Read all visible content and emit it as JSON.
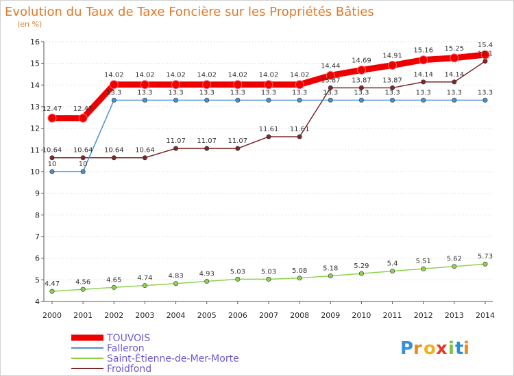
{
  "chart_data": {
    "type": "line",
    "title": "Evolution du Taux de Taxe Foncière sur les Propriétés Bâties",
    "ylabel": "(en %)",
    "xlabel": "",
    "ylim": [
      4,
      16
    ],
    "yticks": [
      4,
      5,
      6,
      7,
      8,
      9,
      10,
      11,
      12,
      13,
      14,
      15,
      16
    ],
    "x": [
      "2000",
      "2001",
      "2002",
      "2003",
      "2004",
      "2005",
      "2006",
      "2007",
      "2008",
      "2009",
      "2010",
      "2011",
      "2012",
      "2013",
      "2014"
    ],
    "series": [
      {
        "name": "TOUVOIS",
        "color": "#ee0000",
        "values": [
          12.47,
          12.47,
          14.02,
          14.02,
          14.02,
          14.02,
          14.02,
          14.02,
          14.02,
          14.44,
          14.69,
          14.91,
          15.16,
          15.25,
          15.4
        ],
        "labels": [
          "12.47",
          "12.47",
          "14.02",
          "14.02",
          "14.02",
          "14.02",
          "14.02",
          "14.02",
          "14.02",
          "14.44",
          "14.69",
          "14.91",
          "15.16",
          "15.25",
          "15.4"
        ]
      },
      {
        "name": "Falleron",
        "color": "#4a90c8",
        "values": [
          10,
          10,
          13.3,
          13.3,
          13.3,
          13.3,
          13.3,
          13.3,
          13.3,
          13.3,
          13.3,
          13.3,
          13.3,
          13.3,
          13.3
        ],
        "labels": [
          "10",
          "10",
          "13.3",
          "13.3",
          "13.3",
          "13.3",
          "13.3",
          "13.3",
          "13.3",
          "13.3",
          "13.3",
          "13.3",
          "13.3",
          "13.3",
          "13.3"
        ]
      },
      {
        "name": "Saint-Étienne-de-Mer-Morte",
        "color": "#8fd14f",
        "values": [
          4.47,
          4.56,
          4.65,
          4.74,
          4.83,
          4.93,
          5.03,
          5.03,
          5.08,
          5.18,
          5.29,
          5.4,
          5.51,
          5.62,
          5.73
        ],
        "labels": [
          "4.47",
          "4.56",
          "4.65",
          "4.74",
          "4.83",
          "4.93",
          "5.03",
          "5.03",
          "5.08",
          "5.18",
          "5.29",
          "5.4",
          "5.51",
          "5.62",
          "5.73"
        ]
      },
      {
        "name": "Froidfond",
        "color": "#7a2a2a",
        "values": [
          10.64,
          10.64,
          10.64,
          10.64,
          11.07,
          11.07,
          11.07,
          11.61,
          11.61,
          13.87,
          13.87,
          13.87,
          14.14,
          14.14,
          15.1
        ],
        "labels": [
          "10.64",
          "10.64",
          "10.64",
          "10.64",
          "11.07",
          "11.07",
          "11.07",
          "11.61",
          "11.61",
          "13.87",
          "13.87",
          "13.87",
          "14.14",
          "14.14",
          "15.1"
        ]
      }
    ],
    "legend_position": "bottom-left"
  },
  "logo": {
    "letters": [
      "P",
      "r",
      "o",
      "x",
      "i",
      "t",
      "i"
    ],
    "colors": [
      "#3a8fd8",
      "#e88a1a",
      "#f2b01e",
      "#e33a2a",
      "#7ac142",
      "#2a8fd8",
      "#e88a1a"
    ]
  }
}
